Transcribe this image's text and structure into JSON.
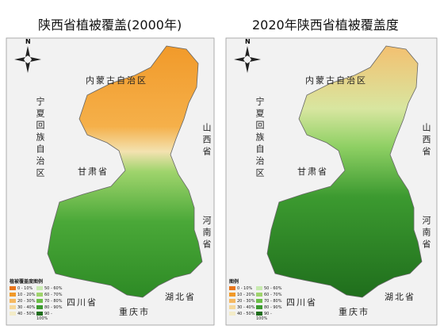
{
  "maps": [
    {
      "title": "陕西省植被覆盖(2000年)",
      "north": "N",
      "labels": [
        "内蒙古自治区",
        "宁夏回族自治区",
        "甘肃省",
        "山西省",
        "河南省",
        "四川省",
        "湖北省",
        "重庆市"
      ],
      "legend": {
        "title": "植被覆盖度图例",
        "items": [
          "0 - 10%",
          "10 - 20%",
          "20 - 30%",
          "30 - 40%",
          "40 - 50%",
          "50 - 60%",
          "60 - 70%",
          "70 - 80%",
          "80 - 90%",
          "90 - 100%"
        ]
      }
    },
    {
      "title": "2020年陕西省植被覆盖度",
      "north": "N",
      "labels": [
        "内蒙古自治区",
        "宁夏回族自治区",
        "甘肃省",
        "山西省",
        "河南省",
        "四川省",
        "湖北省",
        "重庆市"
      ],
      "legend": {
        "title": "图例",
        "items": [
          "0 - 10%",
          "10 - 20%",
          "20 - 30%",
          "30 - 40%",
          "40 - 50%",
          "50 - 60%",
          "60 - 70%",
          "70 - 80%",
          "80 - 90%",
          "90 - 100%"
        ]
      }
    }
  ]
}
